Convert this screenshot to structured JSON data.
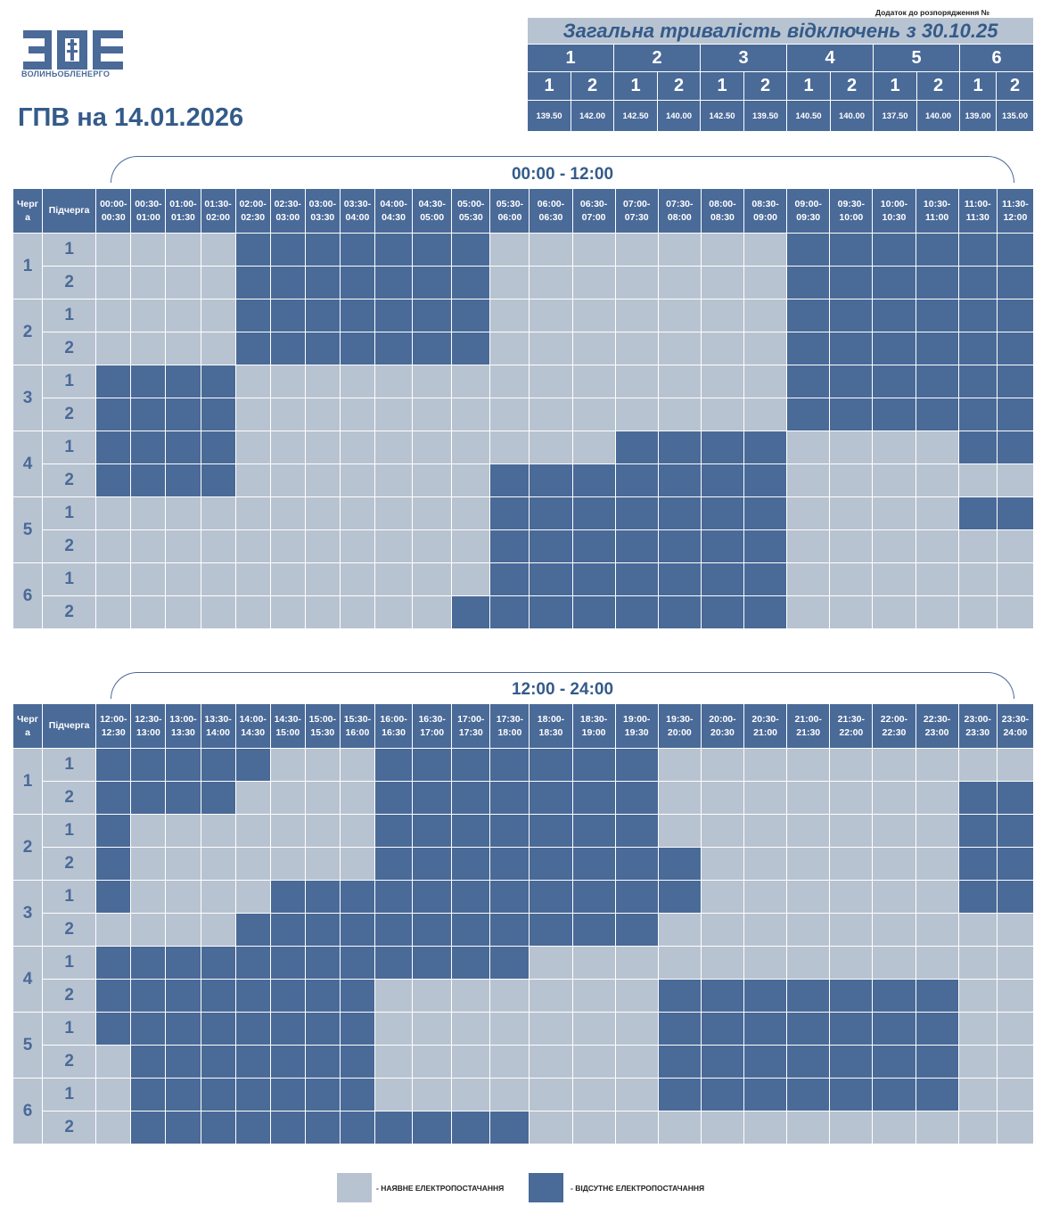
{
  "header": {
    "logo_text": "ВОЛИНЬОБЛЕНЕРГО",
    "logo_mark": "ВОЕ",
    "title": "ГПВ на 14.01.2026",
    "appendix": "Додаток до розпорядження №"
  },
  "summary": {
    "title": "Загальна тривалість відключень з 30.10.25",
    "queues": [
      "1",
      "2",
      "3",
      "4",
      "5",
      "6"
    ],
    "subqueue_labels": [
      "1",
      "2"
    ],
    "values": [
      "139.50",
      "142.00",
      "142.50",
      "140.00",
      "142.50",
      "139.50",
      "140.50",
      "140.00",
      "137.50",
      "140.00",
      "139.00",
      "135.00"
    ]
  },
  "colors": {
    "available": "#b8c3d1",
    "outage": "#4a6a98",
    "text_dark": "#345b8a"
  },
  "table_headers": {
    "queue": "Черг а",
    "subqueue": "Підчерга"
  },
  "periods": [
    {
      "label": "00:00 - 12:00",
      "slots": [
        "00:00-00:30",
        "00:30-01:00",
        "01:00-01:30",
        "01:30-02:00",
        "02:00-02:30",
        "02:30-03:00",
        "03:00-03:30",
        "03:30-04:00",
        "04:00-04:30",
        "04:30-05:00",
        "05:00-05:30",
        "05:30-06:00",
        "06:00-06:30",
        "06:30-07:00",
        "07:00-07:30",
        "07:30-08:00",
        "08:00-08:30",
        "08:30-09:00",
        "09:00-09:30",
        "09:30-10:00",
        "10:00-10:30",
        "10:30-11:00",
        "11:00-11:30",
        "11:30-12:00"
      ],
      "rows": [
        {
          "queue": "1",
          "subqueue": "1",
          "cells": [
            0,
            0,
            0,
            0,
            1,
            1,
            1,
            1,
            1,
            1,
            1,
            0,
            0,
            0,
            0,
            0,
            0,
            0,
            1,
            1,
            1,
            1,
            1,
            1
          ]
        },
        {
          "queue": "1",
          "subqueue": "2",
          "cells": [
            0,
            0,
            0,
            0,
            1,
            1,
            1,
            1,
            1,
            1,
            1,
            0,
            0,
            0,
            0,
            0,
            0,
            0,
            1,
            1,
            1,
            1,
            1,
            1
          ]
        },
        {
          "queue": "2",
          "subqueue": "1",
          "cells": [
            0,
            0,
            0,
            0,
            1,
            1,
            1,
            1,
            1,
            1,
            1,
            0,
            0,
            0,
            0,
            0,
            0,
            0,
            1,
            1,
            1,
            1,
            1,
            1
          ]
        },
        {
          "queue": "2",
          "subqueue": "2",
          "cells": [
            0,
            0,
            0,
            0,
            1,
            1,
            1,
            1,
            1,
            1,
            1,
            0,
            0,
            0,
            0,
            0,
            0,
            0,
            1,
            1,
            1,
            1,
            1,
            1
          ]
        },
        {
          "queue": "3",
          "subqueue": "1",
          "cells": [
            1,
            1,
            1,
            1,
            0,
            0,
            0,
            0,
            0,
            0,
            0,
            0,
            0,
            0,
            0,
            0,
            0,
            0,
            1,
            1,
            1,
            1,
            1,
            1
          ]
        },
        {
          "queue": "3",
          "subqueue": "2",
          "cells": [
            1,
            1,
            1,
            1,
            0,
            0,
            0,
            0,
            0,
            0,
            0,
            0,
            0,
            0,
            0,
            0,
            0,
            0,
            1,
            1,
            1,
            1,
            1,
            1
          ]
        },
        {
          "queue": "4",
          "subqueue": "1",
          "cells": [
            1,
            1,
            1,
            1,
            0,
            0,
            0,
            0,
            0,
            0,
            0,
            0,
            0,
            0,
            1,
            1,
            1,
            1,
            0,
            0,
            0,
            0,
            1,
            1
          ]
        },
        {
          "queue": "4",
          "subqueue": "2",
          "cells": [
            1,
            1,
            1,
            1,
            0,
            0,
            0,
            0,
            0,
            0,
            0,
            1,
            1,
            1,
            1,
            1,
            1,
            1,
            0,
            0,
            0,
            0,
            0,
            0
          ]
        },
        {
          "queue": "5",
          "subqueue": "1",
          "cells": [
            0,
            0,
            0,
            0,
            0,
            0,
            0,
            0,
            0,
            0,
            0,
            1,
            1,
            1,
            1,
            1,
            1,
            1,
            0,
            0,
            0,
            0,
            1,
            1
          ]
        },
        {
          "queue": "5",
          "subqueue": "2",
          "cells": [
            0,
            0,
            0,
            0,
            0,
            0,
            0,
            0,
            0,
            0,
            0,
            1,
            1,
            1,
            1,
            1,
            1,
            1,
            0,
            0,
            0,
            0,
            0,
            0
          ]
        },
        {
          "queue": "6",
          "subqueue": "1",
          "cells": [
            0,
            0,
            0,
            0,
            0,
            0,
            0,
            0,
            0,
            0,
            0,
            1,
            1,
            1,
            1,
            1,
            1,
            1,
            0,
            0,
            0,
            0,
            0,
            0
          ]
        },
        {
          "queue": "6",
          "subqueue": "2",
          "cells": [
            0,
            0,
            0,
            0,
            0,
            0,
            0,
            0,
            0,
            0,
            1,
            1,
            1,
            1,
            1,
            1,
            1,
            1,
            0,
            0,
            0,
            0,
            0,
            0
          ]
        }
      ]
    },
    {
      "label": "12:00 - 24:00",
      "slots": [
        "12:00-12:30",
        "12:30-13:00",
        "13:00-13:30",
        "13:30-14:00",
        "14:00-14:30",
        "14:30-15:00",
        "15:00-15:30",
        "15:30-16:00",
        "16:00-16:30",
        "16:30-17:00",
        "17:00-17:30",
        "17:30-18:00",
        "18:00-18:30",
        "18:30-19:00",
        "19:00-19:30",
        "19:30-20:00",
        "20:00-20:30",
        "20:30-21:00",
        "21:00-21:30",
        "21:30-22:00",
        "22:00-22:30",
        "22:30-23:00",
        "23:00-23:30",
        "23:30-24:00"
      ],
      "rows": [
        {
          "queue": "1",
          "subqueue": "1",
          "cells": [
            1,
            1,
            1,
            1,
            1,
            0,
            0,
            0,
            1,
            1,
            1,
            1,
            1,
            1,
            1,
            0,
            0,
            0,
            0,
            0,
            0,
            0,
            0,
            0
          ]
        },
        {
          "queue": "1",
          "subqueue": "2",
          "cells": [
            1,
            1,
            1,
            1,
            0,
            0,
            0,
            0,
            1,
            1,
            1,
            1,
            1,
            1,
            1,
            0,
            0,
            0,
            0,
            0,
            0,
            0,
            1,
            1
          ]
        },
        {
          "queue": "2",
          "subqueue": "1",
          "cells": [
            1,
            0,
            0,
            0,
            0,
            0,
            0,
            0,
            1,
            1,
            1,
            1,
            1,
            1,
            1,
            0,
            0,
            0,
            0,
            0,
            0,
            0,
            1,
            1
          ]
        },
        {
          "queue": "2",
          "subqueue": "2",
          "cells": [
            1,
            0,
            0,
            0,
            0,
            0,
            0,
            0,
            1,
            1,
            1,
            1,
            1,
            1,
            1,
            1,
            0,
            0,
            0,
            0,
            0,
            0,
            1,
            1
          ]
        },
        {
          "queue": "3",
          "subqueue": "1",
          "cells": [
            1,
            0,
            0,
            0,
            0,
            1,
            1,
            1,
            1,
            1,
            1,
            1,
            1,
            1,
            1,
            1,
            0,
            0,
            0,
            0,
            0,
            0,
            1,
            1
          ]
        },
        {
          "queue": "3",
          "subqueue": "2",
          "cells": [
            0,
            0,
            0,
            0,
            1,
            1,
            1,
            1,
            1,
            1,
            1,
            1,
            1,
            1,
            1,
            0,
            0,
            0,
            0,
            0,
            0,
            0,
            0,
            0
          ]
        },
        {
          "queue": "4",
          "subqueue": "1",
          "cells": [
            1,
            1,
            1,
            1,
            1,
            1,
            1,
            1,
            1,
            1,
            1,
            1,
            0,
            0,
            0,
            0,
            0,
            0,
            0,
            0,
            0,
            0,
            0,
            0
          ]
        },
        {
          "queue": "4",
          "subqueue": "2",
          "cells": [
            1,
            1,
            1,
            1,
            1,
            1,
            1,
            1,
            0,
            0,
            0,
            0,
            0,
            0,
            0,
            1,
            1,
            1,
            1,
            1,
            1,
            1,
            0,
            0
          ]
        },
        {
          "queue": "5",
          "subqueue": "1",
          "cells": [
            1,
            1,
            1,
            1,
            1,
            1,
            1,
            1,
            0,
            0,
            0,
            0,
            0,
            0,
            0,
            1,
            1,
            1,
            1,
            1,
            1,
            1,
            0,
            0
          ]
        },
        {
          "queue": "5",
          "subqueue": "2",
          "cells": [
            0,
            1,
            1,
            1,
            1,
            1,
            1,
            1,
            0,
            0,
            0,
            0,
            0,
            0,
            0,
            1,
            1,
            1,
            1,
            1,
            1,
            1,
            0,
            0
          ]
        },
        {
          "queue": "6",
          "subqueue": "1",
          "cells": [
            0,
            1,
            1,
            1,
            1,
            1,
            1,
            1,
            0,
            0,
            0,
            0,
            0,
            0,
            0,
            1,
            1,
            1,
            1,
            1,
            1,
            1,
            0,
            0
          ]
        },
        {
          "queue": "6",
          "subqueue": "2",
          "cells": [
            0,
            1,
            1,
            1,
            1,
            1,
            1,
            1,
            1,
            1,
            1,
            1,
            0,
            0,
            0,
            0,
            0,
            0,
            0,
            0,
            0,
            0,
            0,
            0
          ]
        }
      ]
    }
  ],
  "legend": {
    "available": "- НАЯВНЕ ЕЛЕКТРОПОСТАЧАННЯ",
    "outage": "- ВІДСУТНЄ ЕЛЕКТРОПОСТАЧАННЯ"
  }
}
